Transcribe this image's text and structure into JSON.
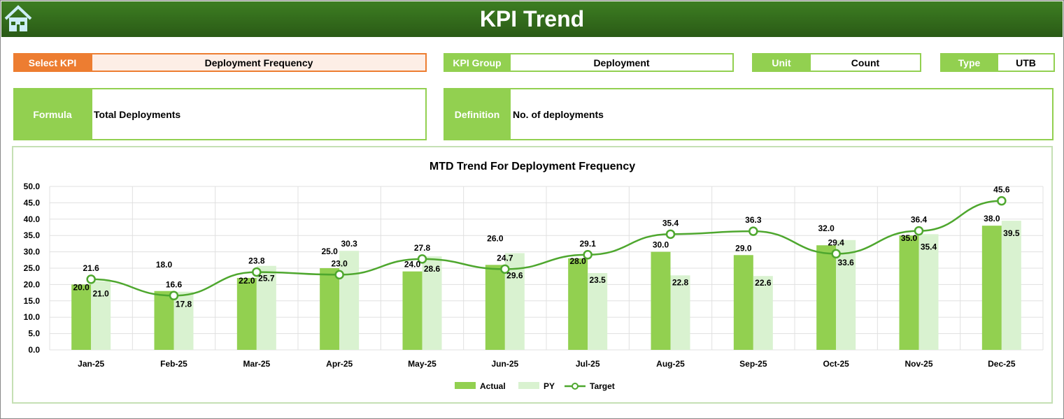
{
  "header": {
    "title": "KPI Trend",
    "home_icon": "home-icon"
  },
  "fields": {
    "select_kpi_label": "Select KPI",
    "select_kpi_value": "Deployment Frequency",
    "kpi_group_label": "KPI Group",
    "kpi_group_value": "Deployment",
    "unit_label": "Unit",
    "unit_value": "Count",
    "type_label": "Type",
    "type_value": "UTB",
    "formula_label": "Formula",
    "formula_value": "Total Deployments",
    "definition_label": "Definition",
    "definition_value": "No. of deployments"
  },
  "colors": {
    "header": "#2f6a19",
    "accent_orange": "#ed7d31",
    "green": "#92d050",
    "py": "#d9f2d0",
    "target": "#4ea72e"
  },
  "chart_data": {
    "type": "bar+line",
    "title": "MTD Trend For Deployment Frequency",
    "categories": [
      "Jan-25",
      "Feb-25",
      "Mar-25",
      "Apr-25",
      "May-25",
      "Jun-25",
      "Jul-25",
      "Aug-25",
      "Sep-25",
      "Oct-25",
      "Nov-25",
      "Dec-25"
    ],
    "ylim": [
      0,
      50
    ],
    "yticks": [
      "0.0",
      "5.0",
      "10.0",
      "15.0",
      "20.0",
      "25.0",
      "30.0",
      "35.0",
      "40.0",
      "45.0",
      "50.0"
    ],
    "grid": true,
    "legend_placement": "bottom",
    "series": [
      {
        "name": "Actual",
        "type": "bar",
        "values": [
          20.0,
          18.0,
          22.0,
          25.0,
          24.0,
          26.0,
          28.0,
          30.0,
          29.0,
          32.0,
          35.0,
          38.0
        ]
      },
      {
        "name": "PY",
        "type": "bar",
        "values": [
          21.0,
          17.8,
          25.7,
          30.3,
          28.6,
          29.6,
          23.5,
          22.8,
          22.6,
          33.6,
          35.4,
          39.5
        ]
      },
      {
        "name": "Target",
        "type": "line",
        "values": [
          21.6,
          16.6,
          23.8,
          23.0,
          27.8,
          24.7,
          29.1,
          35.4,
          36.3,
          29.4,
          36.4,
          45.6
        ]
      }
    ]
  }
}
